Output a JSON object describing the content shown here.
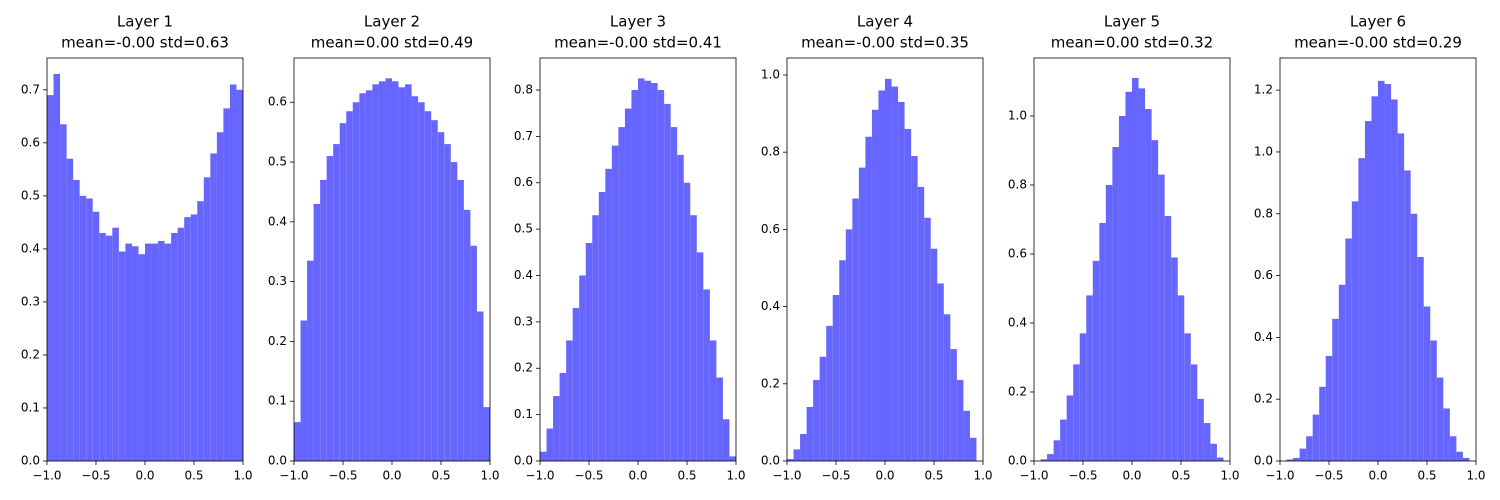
{
  "chart_data": [
    {
      "type": "histogram",
      "title": "Layer 1",
      "subtitle": "mean=-0.00 std=0.63",
      "color": "#6666ff",
      "bins": [
        -1,
        -0.9333,
        -0.8667,
        -0.8,
        -0.7333,
        -0.6667,
        -0.6,
        -0.5333,
        -0.4667,
        -0.4,
        -0.3333,
        -0.2667,
        -0.2,
        -0.1333,
        -0.0667,
        0,
        0.0667,
        0.1333,
        0.2,
        0.2667,
        0.3333,
        0.4,
        0.4667,
        0.5333,
        0.6,
        0.6667,
        0.7333,
        0.8,
        0.8667,
        0.9333,
        1
      ],
      "values": [
        0.69,
        0.73,
        0.635,
        0.57,
        0.53,
        0.5,
        0.495,
        0.47,
        0.43,
        0.425,
        0.44,
        0.395,
        0.41,
        0.405,
        0.39,
        0.41,
        0.41,
        0.415,
        0.41,
        0.43,
        0.44,
        0.46,
        0.465,
        0.49,
        0.535,
        0.58,
        0.62,
        0.665,
        0.71,
        0.7
      ],
      "xlim": [
        -1,
        1
      ],
      "xticks": [
        {
          "value": -1,
          "label": "−1.0"
        },
        {
          "value": -0.5,
          "label": "−0.5"
        },
        {
          "value": 0,
          "label": "0.0"
        },
        {
          "value": 0.5,
          "label": "0.5"
        },
        {
          "value": 1,
          "label": "1.0"
        }
      ],
      "ylim": [
        0,
        0.76
      ],
      "yticks": [
        {
          "value": 0,
          "label": "0.0"
        },
        0.1,
        0.2,
        0.3,
        0.4,
        0.5,
        0.6,
        0.7
      ]
    },
    {
      "type": "histogram",
      "title": "Layer 2",
      "subtitle": "mean=0.00 std=0.49",
      "color": "#6666ff",
      "bins": [
        -1,
        -0.9333,
        -0.8667,
        -0.8,
        -0.7333,
        -0.6667,
        -0.6,
        -0.5333,
        -0.4667,
        -0.4,
        -0.3333,
        -0.2667,
        -0.2,
        -0.1333,
        -0.0667,
        0,
        0.0667,
        0.1333,
        0.2,
        0.2667,
        0.3333,
        0.4,
        0.4667,
        0.5333,
        0.6,
        0.6667,
        0.7333,
        0.8,
        0.8667,
        0.9333,
        1
      ],
      "values": [
        0.065,
        0.235,
        0.335,
        0.43,
        0.47,
        0.51,
        0.53,
        0.565,
        0.585,
        0.6,
        0.615,
        0.62,
        0.63,
        0.635,
        0.64,
        0.635,
        0.625,
        0.63,
        0.61,
        0.6,
        0.585,
        0.57,
        0.55,
        0.53,
        0.5,
        0.47,
        0.42,
        0.36,
        0.25,
        0.09
      ],
      "xlim": [
        -1,
        1
      ],
      "xticks": [
        {
          "value": -1,
          "label": "−1.0"
        },
        {
          "value": -0.5,
          "label": "−0.5"
        },
        {
          "value": 0,
          "label": "0.0"
        },
        {
          "value": 0.5,
          "label": "0.5"
        },
        {
          "value": 1,
          "label": "1.0"
        }
      ],
      "ylim": [
        0,
        0.674
      ],
      "yticks": [
        {
          "value": 0,
          "label": "0.0"
        },
        0.1,
        0.2,
        0.3,
        0.4,
        0.5,
        0.6
      ]
    },
    {
      "type": "histogram",
      "title": "Layer 3",
      "subtitle": "mean=-0.00 std=0.41",
      "color": "#6666ff",
      "bins": [
        -1,
        -0.9333,
        -0.8667,
        -0.8,
        -0.7333,
        -0.6667,
        -0.6,
        -0.5333,
        -0.4667,
        -0.4,
        -0.3333,
        -0.2667,
        -0.2,
        -0.1333,
        -0.0667,
        0,
        0.0667,
        0.1333,
        0.2,
        0.2667,
        0.3333,
        0.4,
        0.4667,
        0.5333,
        0.6,
        0.6667,
        0.7333,
        0.8,
        0.8667,
        0.9333,
        1
      ],
      "values": [
        0.02,
        0.07,
        0.14,
        0.19,
        0.26,
        0.33,
        0.4,
        0.47,
        0.53,
        0.58,
        0.63,
        0.68,
        0.72,
        0.76,
        0.8,
        0.825,
        0.82,
        0.815,
        0.8,
        0.77,
        0.72,
        0.66,
        0.6,
        0.53,
        0.45,
        0.37,
        0.26,
        0.18,
        0.09,
        0.01
      ],
      "xlim": [
        -1,
        1
      ],
      "xticks": [
        {
          "value": -1,
          "label": "−1.0"
        },
        {
          "value": -0.5,
          "label": "−0.5"
        },
        {
          "value": 0,
          "label": "0.0"
        },
        {
          "value": 0.5,
          "label": "0.5"
        },
        {
          "value": 1,
          "label": "1.0"
        }
      ],
      "ylim": [
        0,
        0.869
      ],
      "yticks": [
        {
          "value": 0,
          "label": "0.0"
        },
        0.1,
        0.2,
        0.3,
        0.4,
        0.5,
        0.6,
        0.7,
        0.8
      ]
    },
    {
      "type": "histogram",
      "title": "Layer 4",
      "subtitle": "mean=-0.00 std=0.35",
      "color": "#6666ff",
      "bins": [
        -1,
        -0.9333,
        -0.8667,
        -0.8,
        -0.7333,
        -0.6667,
        -0.6,
        -0.5333,
        -0.4667,
        -0.4,
        -0.3333,
        -0.2667,
        -0.2,
        -0.1333,
        -0.0667,
        0,
        0.0667,
        0.1333,
        0.2,
        0.2667,
        0.3333,
        0.4,
        0.4667,
        0.5333,
        0.6,
        0.6667,
        0.7333,
        0.8,
        0.8667,
        0.9333,
        1
      ],
      "values": [
        0.005,
        0.03,
        0.07,
        0.14,
        0.21,
        0.27,
        0.35,
        0.43,
        0.52,
        0.6,
        0.68,
        0.76,
        0.84,
        0.91,
        0.96,
        0.99,
        0.97,
        0.93,
        0.86,
        0.79,
        0.71,
        0.63,
        0.55,
        0.46,
        0.38,
        0.29,
        0.21,
        0.13,
        0.06,
        0
      ],
      "xlim": [
        -1,
        1
      ],
      "xticks": [
        {
          "value": -1,
          "label": "−1.0"
        },
        {
          "value": -0.5,
          "label": "−0.5"
        },
        {
          "value": 0,
          "label": "0.0"
        },
        {
          "value": 0.5,
          "label": "0.5"
        },
        {
          "value": 1,
          "label": "1.0"
        }
      ],
      "ylim": [
        0,
        1.044
      ],
      "yticks": [
        {
          "value": 0,
          "label": "0.0"
        },
        0.2,
        0.4,
        0.6,
        0.8,
        {
          "value": 1,
          "label": "1.0"
        }
      ]
    },
    {
      "type": "histogram",
      "title": "Layer 5",
      "subtitle": "mean=0.00 std=0.32",
      "color": "#6666ff",
      "bins": [
        -1,
        -0.9333,
        -0.8667,
        -0.8,
        -0.7333,
        -0.6667,
        -0.6,
        -0.5333,
        -0.4667,
        -0.4,
        -0.3333,
        -0.2667,
        -0.2,
        -0.1333,
        -0.0667,
        0,
        0.0667,
        0.1333,
        0.2,
        0.2667,
        0.3333,
        0.4,
        0.4667,
        0.5333,
        0.6,
        0.6667,
        0.7333,
        0.8,
        0.8667,
        0.9333,
        1
      ],
      "values": [
        0,
        0.005,
        0.02,
        0.06,
        0.12,
        0.19,
        0.28,
        0.37,
        0.48,
        0.58,
        0.69,
        0.8,
        0.91,
        1,
        1.07,
        1.11,
        1.08,
        1.02,
        0.93,
        0.83,
        0.71,
        0.59,
        0.48,
        0.37,
        0.28,
        0.18,
        0.11,
        0.05,
        0.01,
        0
      ],
      "xlim": [
        -1,
        1
      ],
      "xticks": [
        {
          "value": -1,
          "label": "−1.0"
        },
        {
          "value": -0.5,
          "label": "−0.5"
        },
        {
          "value": 0,
          "label": "0.0"
        },
        {
          "value": 0.5,
          "label": "0.5"
        },
        {
          "value": 1,
          "label": "1.0"
        }
      ],
      "ylim": [
        0,
        1.168
      ],
      "yticks": [
        {
          "value": 0,
          "label": "0.0"
        },
        0.2,
        0.4,
        0.6,
        0.8,
        {
          "value": 1,
          "label": "1.0"
        }
      ]
    },
    {
      "type": "histogram",
      "title": "Layer 6",
      "subtitle": "mean=-0.00 std=0.29",
      "color": "#6666ff",
      "bins": [
        -1,
        -0.9333,
        -0.8667,
        -0.8,
        -0.7333,
        -0.6667,
        -0.6,
        -0.5333,
        -0.4667,
        -0.4,
        -0.3333,
        -0.2667,
        -0.2,
        -0.1333,
        -0.0667,
        0,
        0.0667,
        0.1333,
        0.2,
        0.2667,
        0.3333,
        0.4,
        0.4667,
        0.5333,
        0.6,
        0.6667,
        0.7333,
        0.8,
        0.8667,
        0.9333,
        1
      ],
      "values": [
        0,
        0.005,
        0.01,
        0.04,
        0.08,
        0.15,
        0.24,
        0.34,
        0.46,
        0.57,
        0.72,
        0.84,
        0.98,
        1.1,
        1.18,
        1.23,
        1.22,
        1.17,
        1.06,
        0.94,
        0.8,
        0.66,
        0.5,
        0.39,
        0.27,
        0.17,
        0.08,
        0.03,
        0.01,
        0
      ],
      "xlim": [
        -1,
        1
      ],
      "xticks": [
        {
          "value": -1,
          "label": "−1.0"
        },
        {
          "value": -0.5,
          "label": "−0.5"
        },
        {
          "value": 0,
          "label": "0.0"
        },
        {
          "value": 0.5,
          "label": "0.5"
        },
        {
          "value": 1,
          "label": "1.0"
        }
      ],
      "ylim": [
        0,
        1.304
      ],
      "yticks": [
        {
          "value": 0,
          "label": "0.0"
        },
        0.2,
        0.4,
        0.6,
        0.8,
        {
          "value": 1,
          "label": "1.0"
        },
        1.2
      ]
    }
  ]
}
